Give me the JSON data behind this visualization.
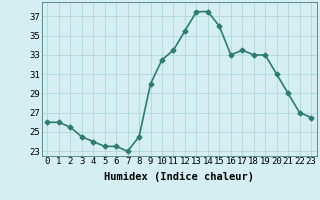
{
  "x": [
    0,
    1,
    2,
    3,
    4,
    5,
    6,
    7,
    8,
    9,
    10,
    11,
    12,
    13,
    14,
    15,
    16,
    17,
    18,
    19,
    20,
    21,
    22,
    23
  ],
  "y": [
    26,
    26,
    25.5,
    24.5,
    24,
    23.5,
    23.5,
    23,
    24.5,
    30,
    32.5,
    33.5,
    35.5,
    37.5,
    37.5,
    36,
    33,
    33.5,
    33,
    33,
    31,
    29,
    27,
    26.5
  ],
  "line_color": "#2d7d6f",
  "marker": "D",
  "marker_size": 2.5,
  "bg_color": "#d4eef2",
  "grid_color": "#b0d8de",
  "xlabel": "Humidex (Indice chaleur)",
  "ylim": [
    22.5,
    38.5
  ],
  "xlim": [
    -0.5,
    23.5
  ],
  "yticks": [
    23,
    25,
    27,
    29,
    31,
    33,
    35,
    37
  ],
  "xtick_labels": [
    "0",
    "1",
    "2",
    "3",
    "4",
    "5",
    "6",
    "7",
    "8",
    "9",
    "10",
    "11",
    "12",
    "13",
    "14",
    "15",
    "16",
    "17",
    "18",
    "19",
    "20",
    "21",
    "22",
    "23"
  ],
  "xlabel_fontsize": 7.5,
  "tick_fontsize": 6.5,
  "line_width": 1.2
}
